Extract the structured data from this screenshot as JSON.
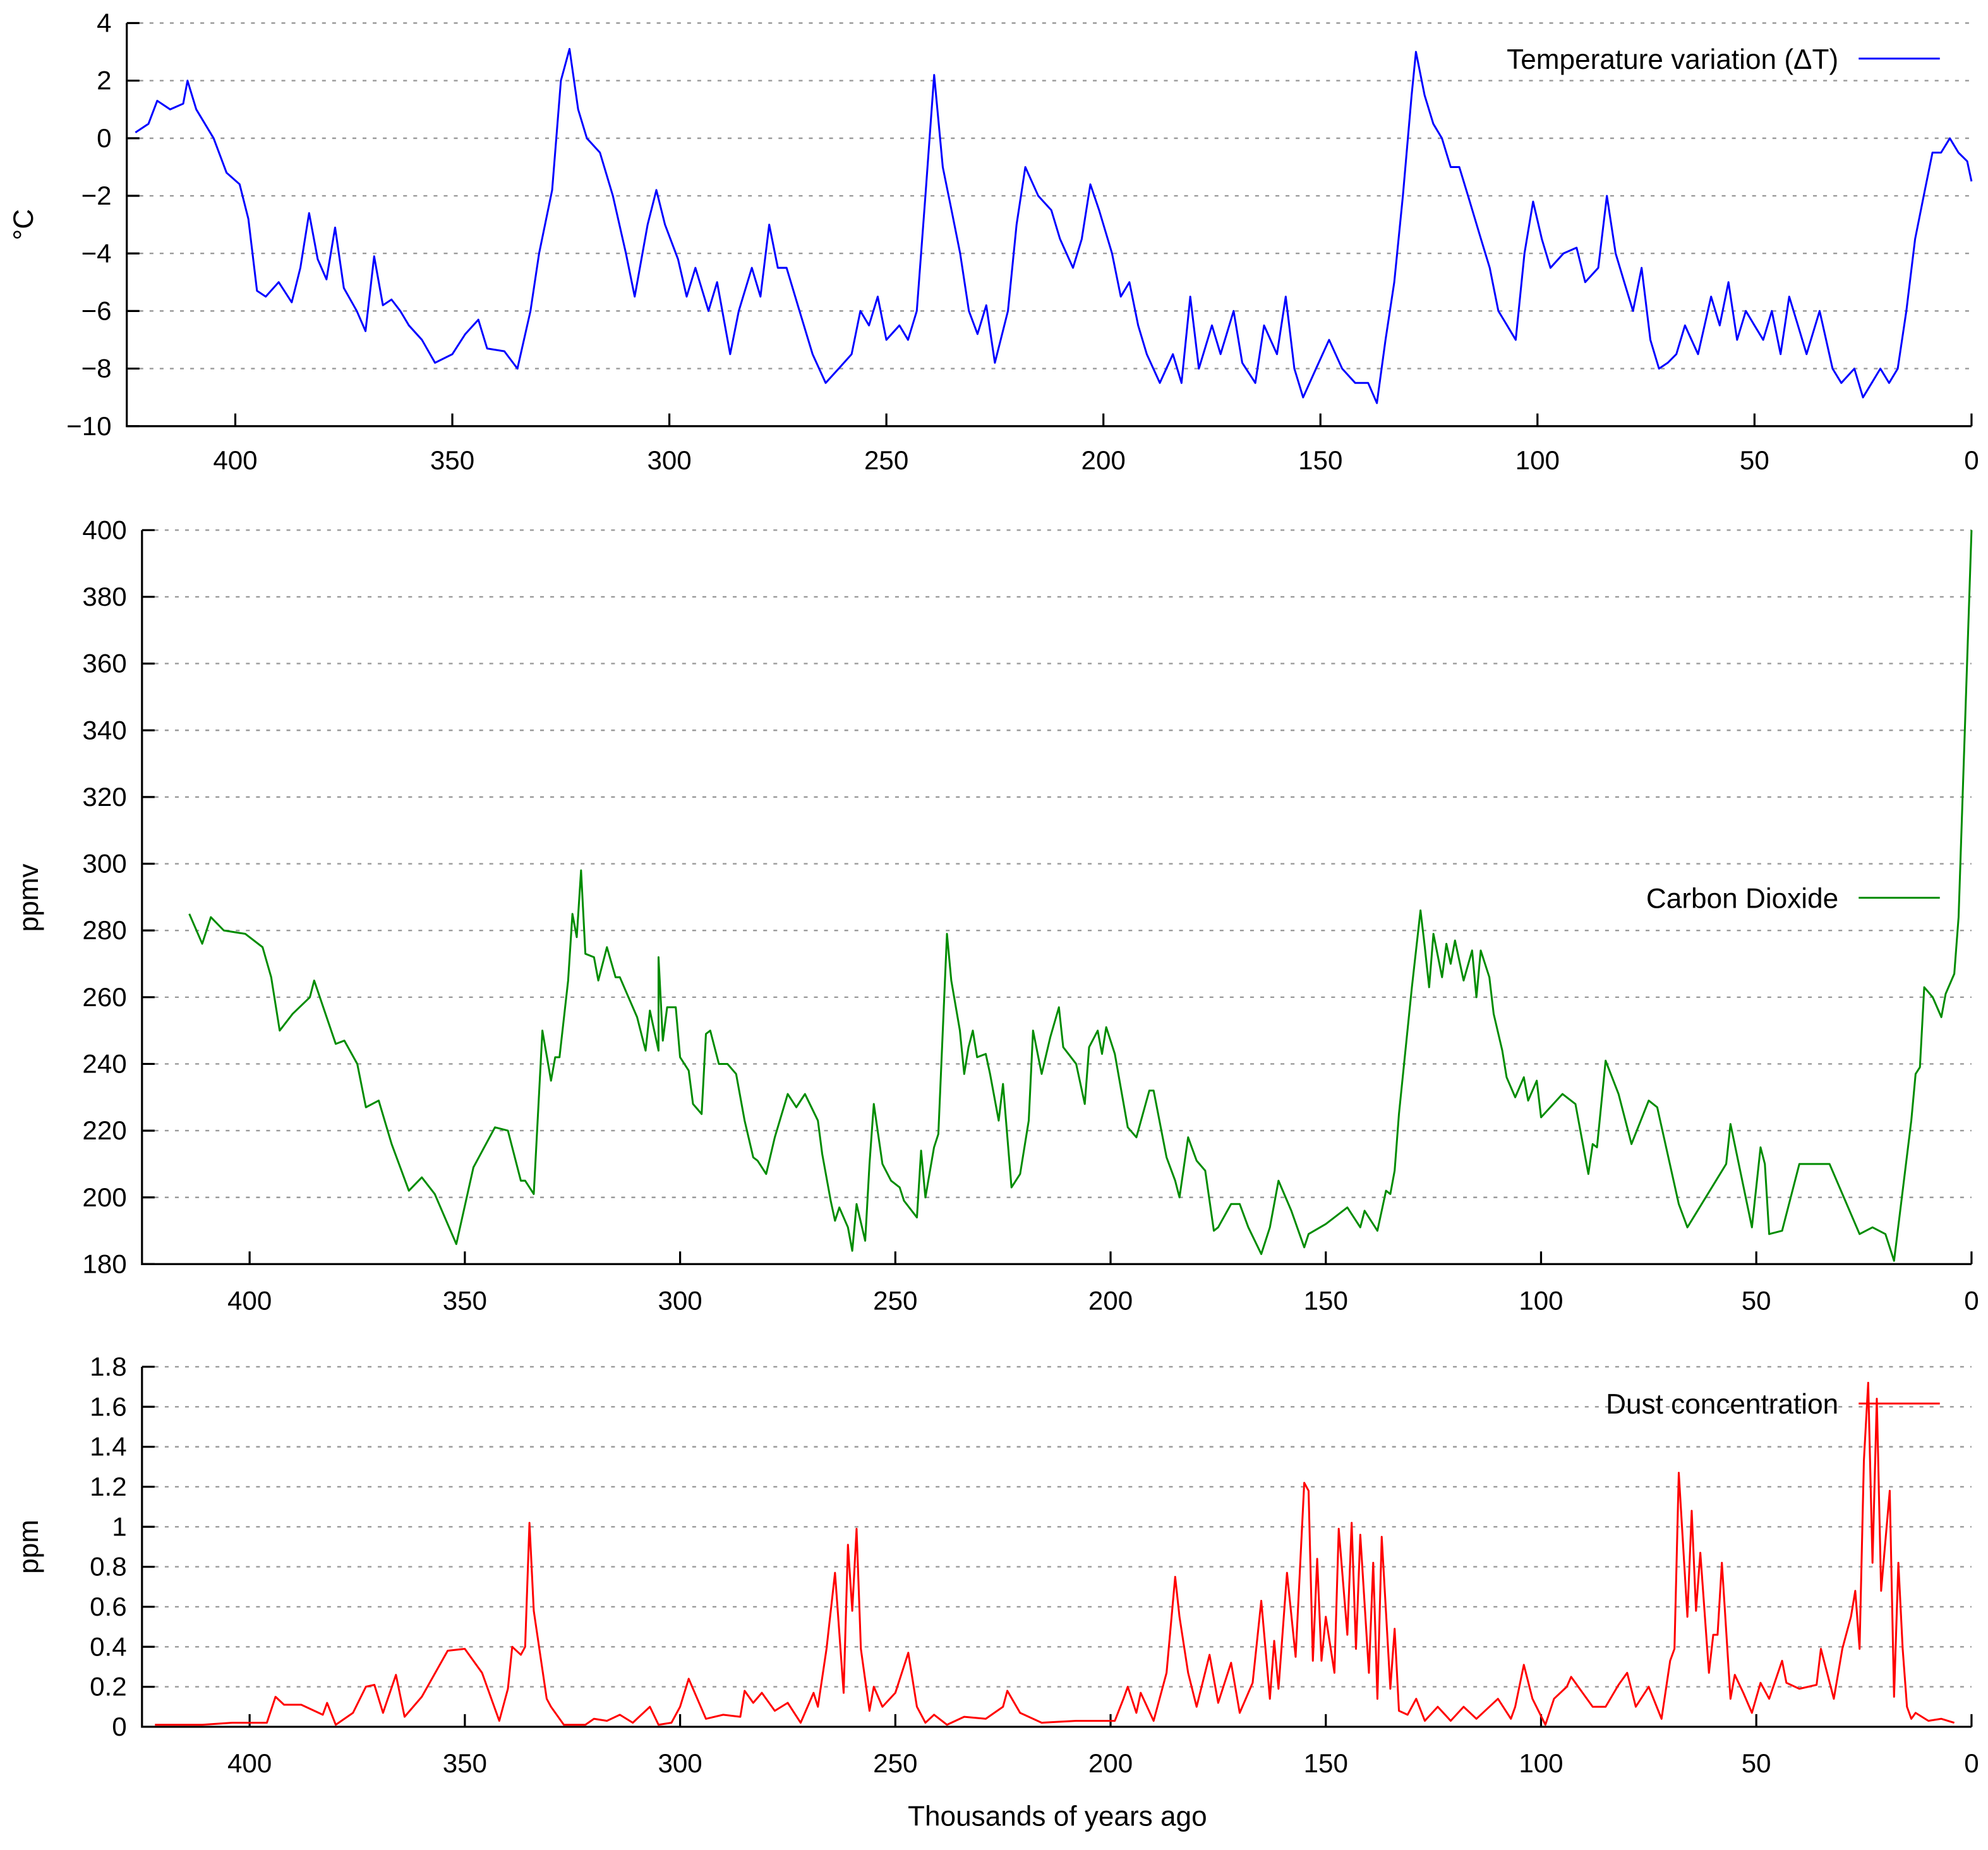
{
  "chart_data": [
    {
      "type": "line",
      "series_name": "Temperature variation (ΔT)",
      "color": "#0000ff",
      "ylabel": "°C",
      "xlabel": "",
      "xlim": [
        425,
        0
      ],
      "ylim": [
        -10,
        4
      ],
      "xticks": [
        400,
        350,
        300,
        250,
        200,
        150,
        100,
        50,
        0
      ],
      "yticks": [
        4,
        2,
        0,
        -2,
        -4,
        -6,
        -8,
        -10
      ],
      "ytick_labels": [
        "4",
        "2",
        "0",
        "−2",
        "−4",
        "−6",
        "−8",
        "−10"
      ],
      "grid": true,
      "legend": "top-right",
      "x": [
        423,
        420,
        418,
        415,
        412,
        411,
        409,
        405,
        402,
        399,
        397,
        395,
        393,
        390,
        387,
        385,
        383,
        381,
        379,
        377,
        375,
        372,
        370,
        368,
        366,
        364,
        362,
        360,
        357,
        354,
        350,
        347,
        344,
        342,
        338,
        335,
        332,
        330,
        327,
        325,
        323,
        321,
        319,
        316,
        313,
        310,
        308,
        305,
        303,
        301,
        298,
        296,
        294,
        291,
        289,
        286,
        284,
        281,
        279,
        277,
        275,
        273,
        270,
        267,
        264,
        261,
        258,
        256,
        254,
        252,
        250,
        247,
        245,
        243,
        241,
        239,
        237,
        235,
        233,
        231,
        229,
        227,
        225,
        222,
        220,
        218,
        215,
        212,
        210,
        207,
        205,
        203,
        201,
        198,
        196,
        194,
        192,
        190,
        187,
        184,
        182,
        180,
        178,
        175,
        173,
        170,
        168,
        165,
        163,
        160,
        158,
        156,
        154,
        151,
        148,
        145,
        142,
        139,
        137,
        135,
        133,
        131,
        129,
        128,
        126,
        124,
        122,
        120,
        118,
        116,
        113,
        111,
        109,
        107,
        105,
        103,
        101,
        99,
        97,
        94,
        91,
        89,
        86,
        84,
        82,
        80,
        78,
        76,
        74,
        72,
        70,
        68,
        66,
        63,
        60,
        58,
        56,
        54,
        52,
        50,
        48,
        46,
        44,
        42,
        40,
        38,
        35,
        32,
        30,
        27,
        25,
        23,
        21,
        19,
        17,
        15,
        13,
        11,
        9,
        7,
        5,
        3,
        1,
        0
      ],
      "y": [
        0.2,
        0.5,
        1.3,
        1.0,
        1.2,
        2.0,
        1.0,
        0.0,
        -1.2,
        -1.6,
        -2.8,
        -5.3,
        -5.5,
        -5.0,
        -5.7,
        -4.5,
        -2.6,
        -4.2,
        -4.9,
        -3.1,
        -5.2,
        -6.0,
        -6.7,
        -4.1,
        -5.8,
        -5.6,
        -6.0,
        -6.5,
        -7.0,
        -7.8,
        -7.5,
        -6.8,
        -6.3,
        -7.3,
        -7.4,
        -8.0,
        -6.0,
        -4.0,
        -1.8,
        2.0,
        3.1,
        1.0,
        0.0,
        -0.5,
        -2.0,
        -4.0,
        -5.5,
        -3.0,
        -1.8,
        -3.0,
        -4.2,
        -5.5,
        -4.5,
        -6.0,
        -5.0,
        -7.5,
        -6.0,
        -4.5,
        -5.5,
        -3.0,
        -4.5,
        -4.5,
        -6.0,
        -7.5,
        -8.5,
        -8.0,
        -7.5,
        -6.0,
        -6.5,
        -5.5,
        -7.0,
        -6.5,
        -7.0,
        -6.0,
        -2.0,
        2.2,
        -1.0,
        -2.5,
        -4.0,
        -6.0,
        -6.8,
        -5.8,
        -7.8,
        -6.0,
        -3.0,
        -1.0,
        -2.0,
        -2.5,
        -3.5,
        -4.5,
        -3.5,
        -1.6,
        -2.5,
        -4.0,
        -5.5,
        -5.0,
        -6.5,
        -7.5,
        -8.5,
        -7.5,
        -8.5,
        -5.5,
        -8.0,
        -6.5,
        -7.5,
        -6.0,
        -7.8,
        -8.5,
        -6.5,
        -7.5,
        -5.5,
        -8.0,
        -9.0,
        -8.0,
        -7.0,
        -8.0,
        -8.5,
        -8.5,
        -9.2,
        -7.0,
        -5.0,
        -2.0,
        1.5,
        3.0,
        1.5,
        0.5,
        0.0,
        -1.0,
        -1.0,
        -2.0,
        -3.5,
        -4.5,
        -6.0,
        -6.5,
        -7.0,
        -4.0,
        -2.2,
        -3.5,
        -4.5,
        -4.0,
        -3.8,
        -5.0,
        -4.5,
        -2.0,
        -4.0,
        -5.0,
        -6.0,
        -4.5,
        -7.0,
        -8.0,
        -7.8,
        -7.5,
        -6.5,
        -7.5,
        -5.5,
        -6.5,
        -5.0,
        -7.0,
        -6.0,
        -6.5,
        -7.0,
        -6.0,
        -7.5,
        -5.5,
        -6.5,
        -7.5,
        -6.0,
        -8.0,
        -8.5,
        -8.0,
        -9.0,
        -8.5,
        -8.0,
        -8.5,
        -8.0,
        -6.0,
        -3.5,
        -2.0,
        -0.5,
        -0.5,
        0.0,
        -0.5,
        -0.8,
        -1.5
      ]
    },
    {
      "type": "line",
      "series_name": "Carbon Dioxide",
      "color": "#008c00",
      "ylabel": "ppmv",
      "xlabel": "",
      "xlim": [
        425,
        0
      ],
      "ylim": [
        180,
        400
      ],
      "xticks": [
        400,
        350,
        300,
        250,
        200,
        150,
        100,
        50,
        0
      ],
      "yticks": [
        400,
        380,
        360,
        340,
        320,
        300,
        280,
        260,
        240,
        220,
        200,
        180
      ],
      "ytick_labels": [
        "400",
        "380",
        "360",
        "340",
        "320",
        "300",
        "280",
        "260",
        "240",
        "220",
        "200",
        "180"
      ],
      "grid": true,
      "legend": "right",
      "x": [
        414,
        411,
        409,
        406,
        401,
        397,
        395,
        393,
        390,
        386,
        385,
        380,
        378,
        375,
        373,
        370,
        367,
        363,
        360,
        357,
        352,
        348,
        343,
        340,
        337,
        336,
        334,
        332,
        330,
        329,
        328,
        326,
        325,
        324,
        323,
        322,
        320,
        319,
        317,
        315,
        314,
        312,
        310,
        308,
        307,
        305,
        305,
        304,
        303,
        301,
        300,
        298,
        297,
        295,
        294,
        293,
        291,
        289,
        287,
        285,
        283,
        282,
        280,
        278,
        275,
        273,
        271,
        268,
        267,
        265,
        264,
        263,
        261,
        260,
        259,
        257,
        256,
        255,
        254,
        253,
        251,
        249,
        248,
        245,
        244,
        243,
        241,
        240,
        239,
        238,
        237,
        235,
        234,
        233,
        232,
        231,
        229,
        228,
        226,
        225,
        223,
        221,
        219,
        218,
        216,
        214,
        212,
        211,
        208,
        206,
        205,
        203,
        202,
        201,
        199,
        196,
        194,
        191,
        190,
        187,
        185,
        184,
        182,
        180,
        178,
        176,
        175,
        172,
        170,
        168,
        165,
        163,
        161,
        158,
        155,
        154,
        150,
        145,
        142,
        141,
        138,
        136,
        135,
        134,
        133,
        130,
        128,
        127,
        126,
        125,
        123,
        122,
        121,
        120,
        118,
        116,
        115,
        114,
        112,
        111,
        109,
        108,
        106,
        104,
        103,
        101,
        100,
        95,
        92,
        89,
        88,
        87,
        85,
        82,
        79,
        75,
        73,
        68,
        66,
        57,
        56,
        51,
        49,
        48,
        47,
        44,
        40,
        33,
        26,
        23,
        20,
        18,
        14,
        13,
        12,
        11,
        9,
        7,
        6,
        4,
        3,
        0
      ],
      "y": [
        285,
        276,
        284,
        280,
        279,
        275,
        266,
        250,
        255,
        260,
        265,
        246,
        247,
        240,
        227,
        229,
        216,
        202,
        206,
        201,
        186,
        209,
        221,
        220,
        205,
        205,
        201,
        250,
        235,
        242,
        242,
        265,
        285,
        278,
        298,
        273,
        272,
        265,
        275,
        266,
        266,
        260,
        254,
        244,
        256,
        244,
        272,
        247,
        257,
        257,
        242,
        238,
        228,
        225,
        249,
        250,
        240,
        240,
        237,
        223,
        212,
        211,
        207,
        218,
        231,
        227,
        231,
        223,
        213,
        199,
        193,
        197,
        191,
        184,
        198,
        187,
        210,
        228,
        219,
        210,
        205,
        203,
        199,
        194,
        214,
        200,
        215,
        219,
        249,
        279,
        265,
        250,
        237,
        245,
        250,
        242,
        243,
        237,
        223,
        234,
        203,
        207,
        223,
        250,
        237,
        248,
        257,
        245,
        240,
        228,
        245,
        250,
        243,
        251,
        243,
        221,
        218,
        232,
        232,
        212,
        205,
        200,
        218,
        211,
        208,
        190,
        191,
        198,
        198,
        191,
        183,
        191,
        205,
        196,
        185,
        189,
        192,
        197,
        191,
        196,
        190,
        202,
        201,
        208,
        225,
        263,
        286,
        275,
        263,
        279,
        266,
        276,
        270,
        277,
        265,
        274,
        260,
        274,
        266,
        255,
        244,
        236,
        230,
        236,
        229,
        235,
        224,
        231,
        228,
        207,
        216,
        215,
        241,
        231,
        216,
        229,
        227,
        198,
        191,
        210,
        222,
        191,
        215,
        210,
        189,
        190,
        210,
        210,
        189,
        191,
        189,
        181,
        223,
        237,
        239,
        263,
        260,
        254,
        261,
        267,
        284,
        400
      ]
    },
    {
      "type": "line",
      "series_name": "Dust concentration",
      "color": "#ff0000",
      "ylabel": "ppm",
      "xlabel": "Thousands of years ago",
      "xlim": [
        425,
        0
      ],
      "ylim": [
        0,
        1.8
      ],
      "xticks": [
        400,
        350,
        300,
        250,
        200,
        150,
        100,
        50,
        0
      ],
      "yticks": [
        1.8,
        1.6,
        1.4,
        1.2,
        1,
        0.8,
        0.6,
        0.4,
        0.2,
        0
      ],
      "ytick_labels": [
        "1.8",
        "1.6",
        "1.4",
        "1.2",
        "1",
        "0.8",
        "0.6",
        "0.4",
        "0.2",
        "0"
      ],
      "grid": true,
      "legend": "top-right",
      "x": [
        422,
        411,
        404,
        401,
        396,
        394,
        392,
        388,
        383,
        382,
        380,
        376,
        373,
        371,
        369,
        366,
        364,
        360,
        354,
        350,
        346,
        342,
        340,
        339,
        337,
        336,
        335,
        334,
        331,
        330,
        327,
        322,
        320,
        317,
        314,
        311,
        307,
        305,
        302,
        300,
        298,
        294,
        290,
        286,
        285,
        283,
        281,
        278,
        275,
        272,
        269,
        268,
        266,
        264,
        262,
        261,
        260,
        259,
        258,
        256,
        255,
        253,
        250,
        247,
        245,
        243,
        241,
        238,
        234,
        229,
        225,
        224,
        221,
        216,
        208,
        199,
        197,
        196,
        194,
        193,
        190,
        187,
        185,
        184,
        182,
        180,
        177,
        175,
        172,
        170,
        167,
        165,
        163,
        162,
        161,
        159,
        157,
        155,
        154,
        153,
        152,
        151,
        150,
        148,
        147,
        145,
        144,
        143,
        142,
        140,
        139,
        138,
        137,
        135,
        134,
        133,
        131,
        129,
        127,
        124,
        121,
        118,
        115,
        110,
        107,
        106,
        104,
        102,
        99,
        97,
        94,
        93,
        90,
        88,
        85,
        82,
        80,
        78,
        75,
        72,
        70,
        69,
        68,
        66,
        65,
        64,
        63,
        61,
        60,
        59,
        58,
        56,
        55,
        53,
        51,
        49,
        47,
        44,
        43,
        40,
        36,
        35,
        32,
        30,
        28,
        27,
        26,
        25,
        24,
        23,
        22,
        21,
        19,
        18,
        17,
        16,
        15,
        14,
        13,
        10,
        7,
        4
      ],
      "y": [
        0.01,
        0.01,
        0.02,
        0.02,
        0.02,
        0.15,
        0.11,
        0.11,
        0.06,
        0.12,
        0.01,
        0.07,
        0.2,
        0.21,
        0.07,
        0.26,
        0.05,
        0.15,
        0.38,
        0.39,
        0.27,
        0.03,
        0.19,
        0.4,
        0.36,
        0.4,
        1.02,
        0.58,
        0.14,
        0.1,
        0.01,
        0.01,
        0.04,
        0.03,
        0.06,
        0.02,
        0.1,
        0.01,
        0.02,
        0.1,
        0.24,
        0.04,
        0.06,
        0.05,
        0.18,
        0.12,
        0.17,
        0.08,
        0.12,
        0.02,
        0.17,
        0.1,
        0.39,
        0.77,
        0.17,
        0.91,
        0.58,
        0.99,
        0.39,
        0.08,
        0.2,
        0.1,
        0.17,
        0.37,
        0.1,
        0.02,
        0.06,
        0.01,
        0.05,
        0.04,
        0.1,
        0.18,
        0.07,
        0.02,
        0.03,
        0.03,
        0.14,
        0.2,
        0.07,
        0.17,
        0.03,
        0.27,
        0.75,
        0.55,
        0.27,
        0.1,
        0.36,
        0.12,
        0.32,
        0.07,
        0.22,
        0.63,
        0.14,
        0.43,
        0.19,
        0.77,
        0.35,
        1.22,
        1.18,
        0.33,
        0.84,
        0.33,
        0.55,
        0.27,
        0.99,
        0.46,
        1.02,
        0.39,
        0.96,
        0.27,
        0.82,
        0.14,
        0.95,
        0.19,
        0.49,
        0.08,
        0.06,
        0.14,
        0.03,
        0.1,
        0.03,
        0.1,
        0.04,
        0.14,
        0.04,
        0.1,
        0.31,
        0.14,
        0.01,
        0.14,
        0.2,
        0.25,
        0.16,
        0.1,
        0.1,
        0.21,
        0.27,
        0.1,
        0.2,
        0.04,
        0.33,
        0.39,
        1.27,
        0.55,
        1.08,
        0.58,
        0.87,
        0.27,
        0.46,
        0.46,
        0.82,
        0.14,
        0.26,
        0.17,
        0.07,
        0.22,
        0.14,
        0.33,
        0.22,
        0.19,
        0.21,
        0.39,
        0.14,
        0.39,
        0.55,
        0.68,
        0.39,
        1.33,
        1.72,
        0.82,
        1.64,
        0.68,
        1.18,
        0.15,
        0.82,
        0.39,
        0.1,
        0.04,
        0.07,
        0.03,
        0.04,
        0.02
      ]
    }
  ]
}
